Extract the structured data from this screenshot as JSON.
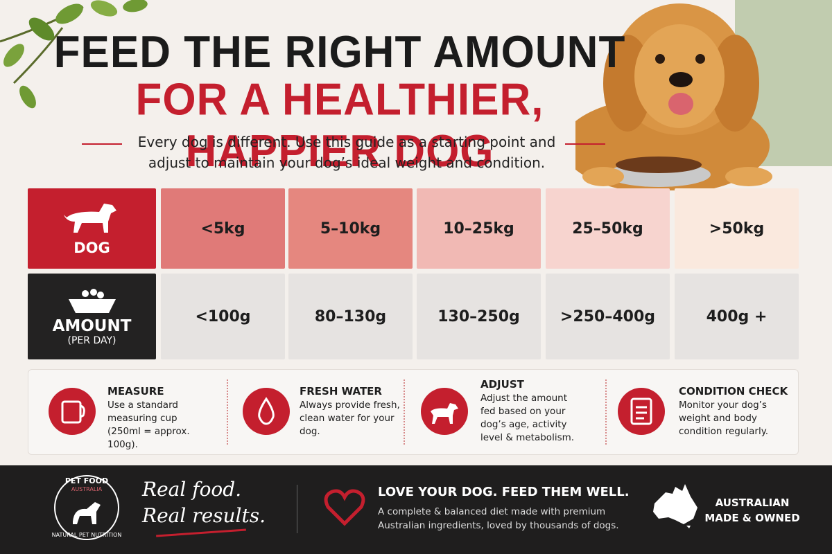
{
  "header": {
    "title_line1": "FEED THE RIGHT AMOUNT",
    "title_line2": "FOR A HEALTHIER, HAPPIER DOG",
    "subtitle": "Every dog is different. Use this guide as a starting point and adjust to maintain your dog’s ideal weight and condition."
  },
  "table": {
    "row_headers": [
      {
        "label": "DOG"
      },
      {
        "label": "AMOUNT",
        "sublabel": "(PER DAY)"
      }
    ],
    "rows": [
      [
        "<5kg",
        "5–10kg",
        "10–25kg",
        "25–50kg",
        ">50kg"
      ],
      [
        "<100g",
        "80–130g",
        "130–250g",
        ">250–400g",
        "400g +"
      ]
    ]
  },
  "tips": [
    {
      "title": "MEASURE",
      "text": "Use a standard measuring cup (250ml = approx. 100g)."
    },
    {
      "title": "FRESH WATER",
      "text": "Always provide fresh, clean water for your dog."
    },
    {
      "title": "ADJUST",
      "text": "Adjust the amount fed based on your dog’s age, activity level & metabolism."
    },
    {
      "title": "CONDITION CHECK",
      "text": "Monitor your dog’s weight and body condition regularly."
    }
  ],
  "footer": {
    "badge": {
      "top": "PET FOOD",
      "middle": "AUSTRALIA",
      "bottom": "NATURAL PET NUTRITION"
    },
    "slogan": [
      "Real food.",
      "Real results."
    ],
    "headline": "LOVE YOUR DOG. FEED THEM WELL.",
    "text": "A complete & balanced diet made with premium Australian ingredients, loved by thousands of dogs.",
    "origin": [
      "AUSTRALIAN",
      "MADE & OWNED"
    ]
  }
}
